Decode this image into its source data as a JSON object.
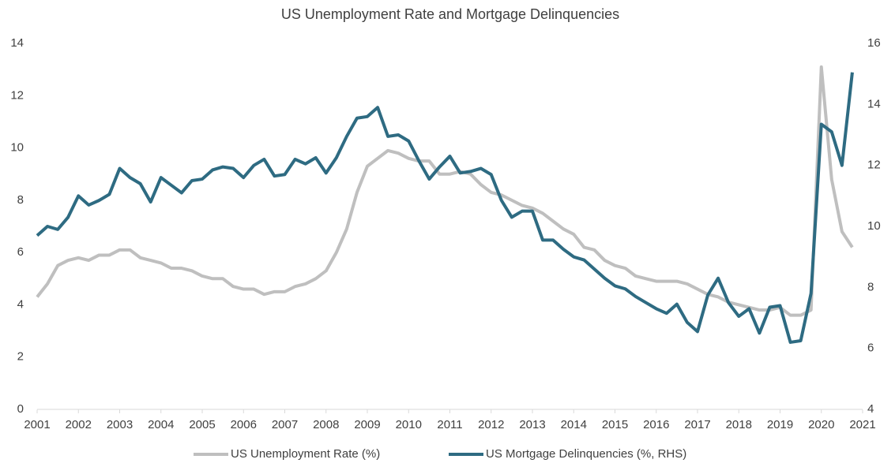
{
  "chart_data": {
    "type": "line",
    "title": "US Unemployment Rate and Mortgage Delinquencies",
    "x": [
      2001,
      2001.25,
      2001.5,
      2001.75,
      2002,
      2002.25,
      2002.5,
      2002.75,
      2003,
      2003.25,
      2003.5,
      2003.75,
      2004,
      2004.25,
      2004.5,
      2004.75,
      2005,
      2005.25,
      2005.5,
      2005.75,
      2006,
      2006.25,
      2006.5,
      2006.75,
      2007,
      2007.25,
      2007.5,
      2007.75,
      2008,
      2008.25,
      2008.5,
      2008.75,
      2009,
      2009.25,
      2009.5,
      2009.75,
      2010,
      2010.25,
      2010.5,
      2010.75,
      2011,
      2011.25,
      2011.5,
      2011.75,
      2012,
      2012.25,
      2012.5,
      2012.75,
      2013,
      2013.25,
      2013.5,
      2013.75,
      2014,
      2014.25,
      2014.5,
      2014.75,
      2015,
      2015.25,
      2015.5,
      2015.75,
      2016,
      2016.25,
      2016.5,
      2016.75,
      2017,
      2017.25,
      2017.5,
      2017.75,
      2018,
      2018.25,
      2018.5,
      2018.75,
      2019,
      2019.25,
      2019.5,
      2019.75,
      2020,
      2020.25,
      2020.5,
      2020.75
    ],
    "series": [
      {
        "name": "US Unemployment Rate (%)",
        "color": "#bfbfbf",
        "axis": "y",
        "values": [
          4.3,
          4.8,
          5.5,
          5.7,
          5.8,
          5.7,
          5.9,
          5.9,
          6.1,
          6.1,
          5.8,
          5.7,
          5.6,
          5.4,
          5.4,
          5.3,
          5.1,
          5.0,
          5.0,
          4.7,
          4.6,
          4.6,
          4.4,
          4.5,
          4.5,
          4.7,
          4.8,
          5.0,
          5.3,
          6.0,
          6.9,
          8.3,
          9.3,
          9.6,
          9.9,
          9.8,
          9.6,
          9.5,
          9.5,
          9.0,
          9.0,
          9.1,
          9.0,
          8.6,
          8.3,
          8.2,
          8.0,
          7.8,
          7.7,
          7.5,
          7.2,
          6.9,
          6.7,
          6.2,
          6.1,
          5.7,
          5.5,
          5.4,
          5.1,
          5.0,
          4.9,
          4.9,
          4.9,
          4.8,
          4.6,
          4.4,
          4.3,
          4.1,
          4.0,
          3.9,
          3.8,
          3.8,
          3.9,
          3.6,
          3.6,
          3.8,
          13.1,
          8.8,
          6.8,
          6.2
        ]
      },
      {
        "name": "US Mortgage Delinquencies (%, RHS)",
        "color": "#2e6b82",
        "axis": "y2",
        "values": [
          9.7,
          10.0,
          9.9,
          10.3,
          11.0,
          10.7,
          10.85,
          11.05,
          11.9,
          11.6,
          11.4,
          10.8,
          11.6,
          11.35,
          11.1,
          11.5,
          11.55,
          11.85,
          11.95,
          11.9,
          11.6,
          12.0,
          12.2,
          11.65,
          11.7,
          12.2,
          12.05,
          12.25,
          11.75,
          12.25,
          12.95,
          13.55,
          13.6,
          13.9,
          12.95,
          13.0,
          12.8,
          12.15,
          11.55,
          11.95,
          12.3,
          11.75,
          11.8,
          11.9,
          11.7,
          10.85,
          10.3,
          10.5,
          10.5,
          9.55,
          9.55,
          9.25,
          9.0,
          8.9,
          8.6,
          8.3,
          8.05,
          7.95,
          7.7,
          7.5,
          7.3,
          7.15,
          7.45,
          6.85,
          6.55,
          7.75,
          8.3,
          7.5,
          7.05,
          7.3,
          6.5,
          7.35,
          7.4,
          6.2,
          6.25,
          7.8,
          13.35,
          13.1,
          12.0,
          15.05
        ]
      }
    ],
    "xlim": [
      2001,
      2021
    ],
    "xticks": [
      2001,
      2002,
      2003,
      2004,
      2005,
      2006,
      2007,
      2008,
      2009,
      2010,
      2011,
      2012,
      2013,
      2014,
      2015,
      2016,
      2017,
      2018,
      2019,
      2020,
      2021
    ],
    "ylim": [
      0,
      14
    ],
    "yticks": [
      0,
      2,
      4,
      6,
      8,
      10,
      12,
      14
    ],
    "y2lim": [
      4,
      16
    ],
    "y2ticks": [
      4,
      6,
      8,
      10,
      12,
      14,
      16
    ],
    "grid": false,
    "legend": "bottom"
  }
}
